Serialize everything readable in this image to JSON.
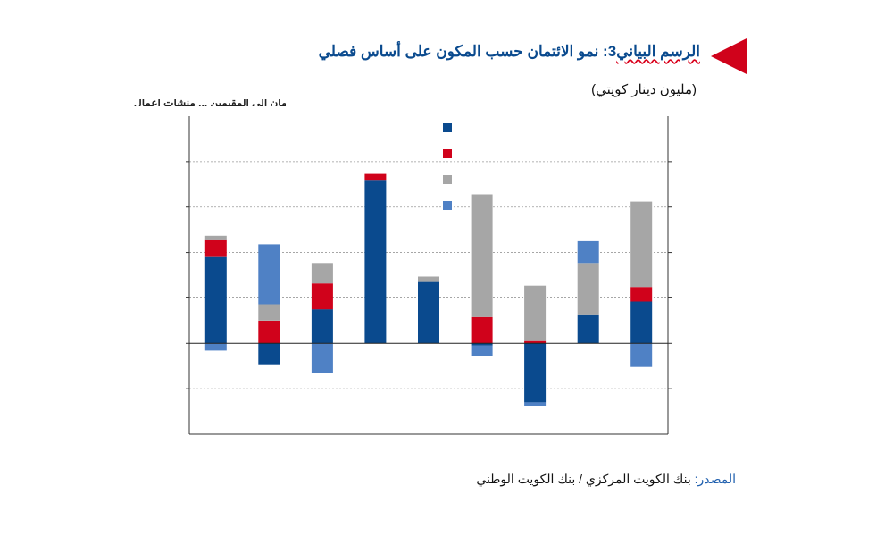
{
  "header": {
    "title_prefix": "الرسم البياني",
    "title_number": "3",
    "title_rest": ": نمو الائتمان حسب المكون على أساس فصلي",
    "unit": "(مليون دينار كويتي)",
    "cut_text": "الائتمان الى المقيمين ... منشآت أعمال",
    "marker_color": "#d0021b"
  },
  "source": {
    "label": "المصدر:",
    "text": " بنك الكويت المركزي / بنك الكويت الوطني"
  },
  "chart_data": {
    "type": "bar",
    "stacked": true,
    "categories": [
      "",
      "",
      "",
      "",
      "",
      "",
      "",
      "",
      ""
    ],
    "series": [
      {
        "color": "#0a4a8e",
        "values": [
          190,
          -48,
          75,
          358,
          135,
          -5,
          -130,
          62,
          92
        ]
      },
      {
        "color": "#d0021b",
        "values": [
          37,
          50,
          57,
          15,
          0,
          58,
          5,
          0,
          32
        ]
      },
      {
        "color": "#a6a6a6",
        "values": [
          10,
          36,
          45,
          0,
          12,
          270,
          122,
          115,
          188
        ]
      },
      {
        "color": "#4f81c5",
        "values": [
          -16,
          132,
          -65,
          0,
          0,
          -22,
          -8,
          48,
          -52
        ]
      }
    ],
    "legend": {
      "position": "top-center",
      "labels": [
        "",
        "",
        "",
        ""
      ]
    },
    "ylim": [
      -200,
      500
    ],
    "ytick_step": 100,
    "grid": true,
    "grid_style": "dotted",
    "axes_box": true
  }
}
